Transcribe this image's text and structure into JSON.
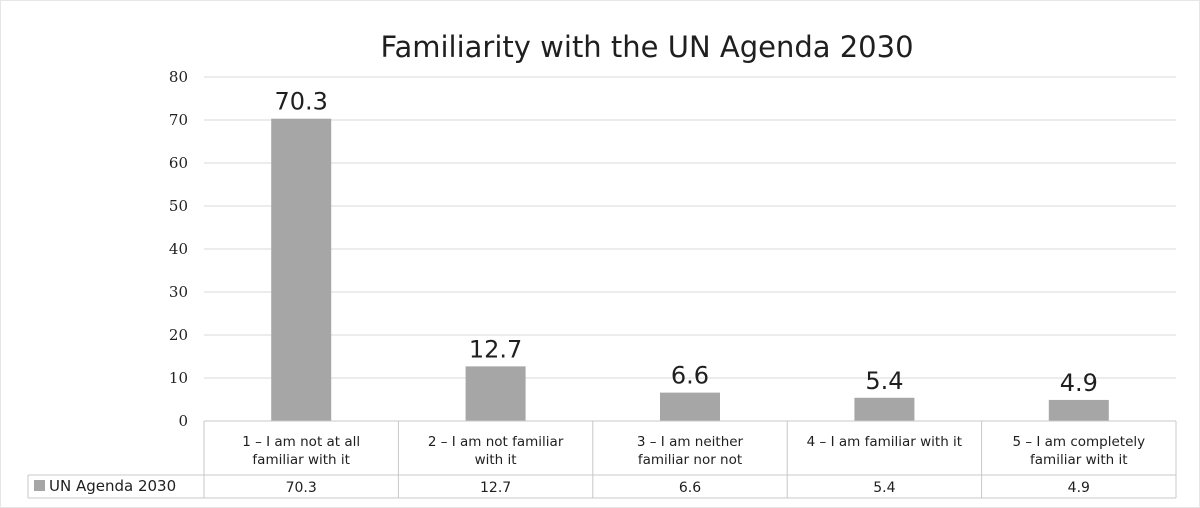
{
  "chart_data": {
    "type": "bar",
    "title": "Familiarity with the UN Agenda 2030",
    "categories": [
      [
        "1 – I am not at all",
        "familiar with it"
      ],
      [
        "2 – I am not familiar",
        "with it"
      ],
      [
        "3 – I am neither",
        "familiar nor not"
      ],
      [
        "4 – I am familiar with it"
      ],
      [
        "5 – I am completely",
        "familiar with it"
      ]
    ],
    "series": [
      {
        "name": "UN Agenda 2030",
        "values": [
          70.3,
          12.7,
          6.6,
          5.4,
          4.9
        ],
        "color": "#a6a6a6"
      }
    ],
    "ylim": [
      0,
      80
    ],
    "yticks": [
      0,
      10,
      20,
      30,
      40,
      50,
      60,
      70,
      80
    ],
    "grid": true,
    "data_table": true,
    "legend": "data-table-row"
  }
}
